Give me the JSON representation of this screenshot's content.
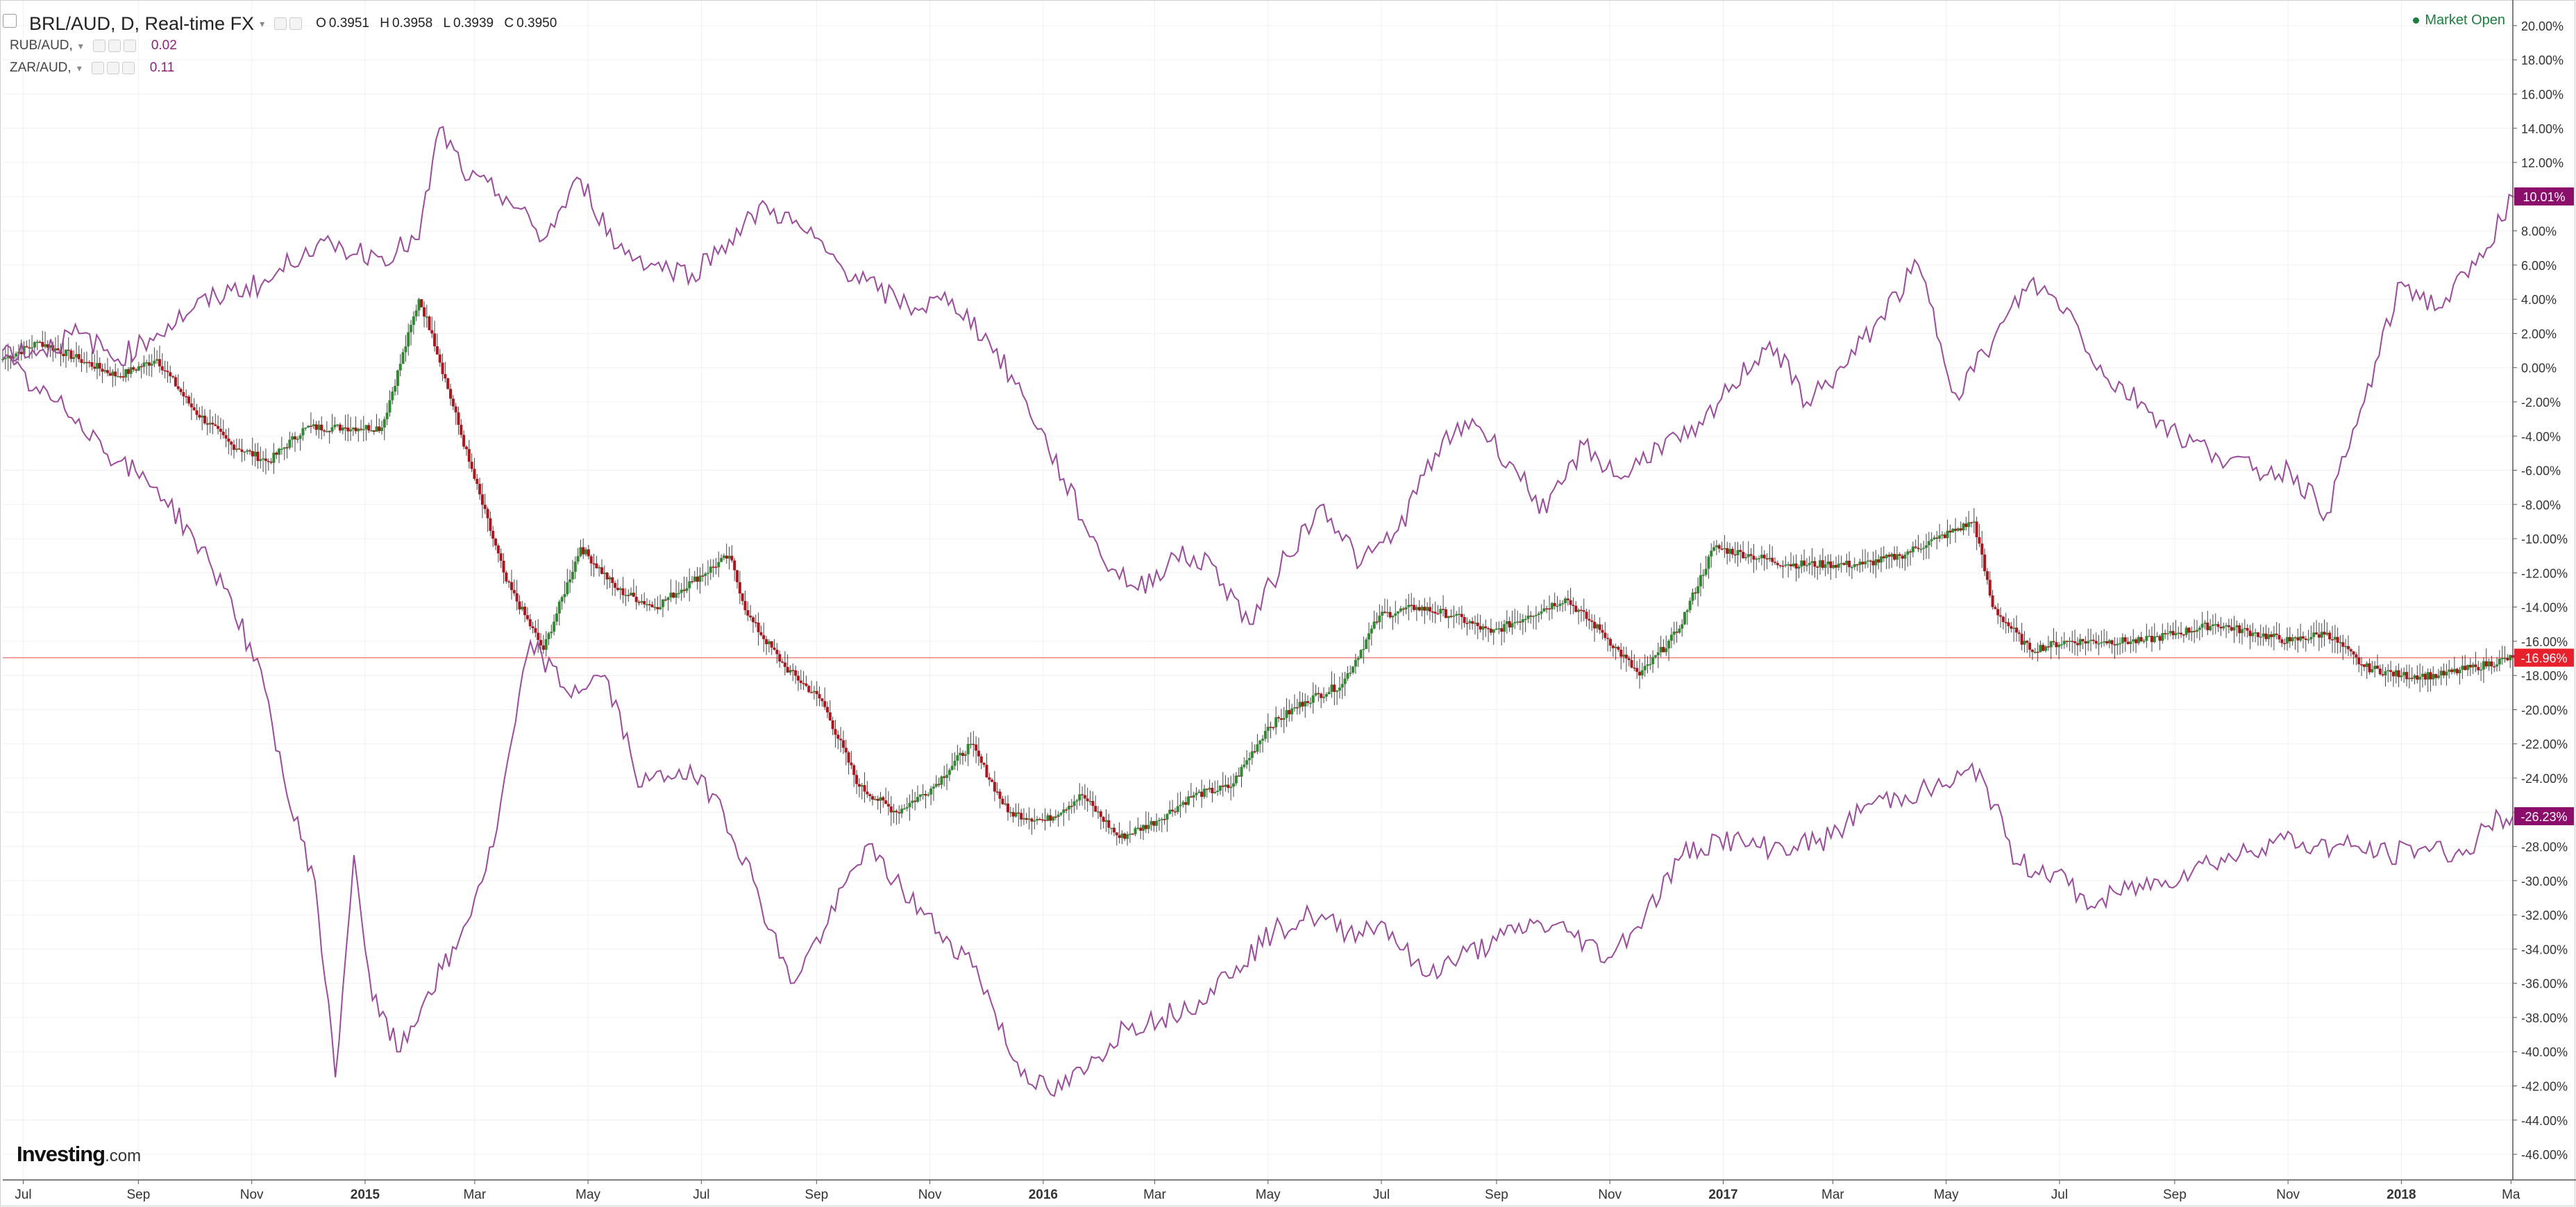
{
  "header": {
    "main_symbol": "BRL/AUD, D, Real-time FX",
    "ohlc": [
      {
        "k": "O",
        "v": "0.3951"
      },
      {
        "k": "H",
        "v": "0.3958"
      },
      {
        "k": "L",
        "v": "0.3939"
      },
      {
        "k": "C",
        "v": "0.3950"
      }
    ],
    "compare": [
      {
        "label": "RUB/AUD,",
        "value": "0.02"
      },
      {
        "label": "ZAR/AUD,",
        "value": "0.11"
      }
    ],
    "market_status": "Market Open"
  },
  "brand": {
    "name": "Investing",
    "suffix": ".com"
  },
  "colors": {
    "up": "#2e8b2e",
    "down": "#b3121b",
    "compare_line": "#9c4a9c",
    "last_price_line": "#f08080",
    "last_badge_main": "#e8202c",
    "last_badge_compare": "#8b0e6a",
    "grid": "#f0f0f0"
  },
  "chart_data": {
    "type": "line",
    "y_axis": {
      "unit": "%",
      "ylim": [
        -47.5,
        21.5
      ],
      "ticks": [
        20,
        18,
        16,
        14,
        12,
        10,
        8,
        6,
        4,
        2,
        0,
        -2,
        -4,
        -6,
        -8,
        -10,
        -12,
        -14,
        -16,
        -18,
        -20,
        -22,
        -24,
        -26,
        -28,
        -30,
        -32,
        -34,
        -36,
        -38,
        -40,
        -42,
        -44,
        -46
      ],
      "tick_labels": [
        "20.00%",
        "18.00%",
        "16.00%",
        "14.00%",
        "12.00%",
        "10.00%",
        "8.00%",
        "6.00%",
        "4.00%",
        "2.00%",
        "0.00%",
        "-2.00%",
        "-4.00%",
        "-6.00%",
        "-8.00%",
        "-10.00%",
        "-12.00%",
        "-14.00%",
        "-16.00%",
        "-18.00%",
        "-20.00%",
        "-22.00%",
        "-24.00%",
        "-26.00%",
        "-28.00%",
        "-30.00%",
        "-32.00%",
        "-34.00%",
        "-36.00%",
        "-38.00%",
        "-40.00%",
        "-42.00%",
        "-44.00%",
        "-46.00%"
      ]
    },
    "x_axis": {
      "xlim": [
        "2014-06-20",
        "2018-03-02"
      ],
      "ticks": [
        {
          "date": "2014-07-01",
          "label": "Jul",
          "bold": false
        },
        {
          "date": "2014-09-01",
          "label": "Sep",
          "bold": false
        },
        {
          "date": "2014-11-01",
          "label": "Nov",
          "bold": false
        },
        {
          "date": "2015-01-01",
          "label": "2015",
          "bold": true
        },
        {
          "date": "2015-03-01",
          "label": "Mar",
          "bold": false
        },
        {
          "date": "2015-05-01",
          "label": "May",
          "bold": false
        },
        {
          "date": "2015-07-01",
          "label": "Jul",
          "bold": false
        },
        {
          "date": "2015-09-01",
          "label": "Sep",
          "bold": false
        },
        {
          "date": "2015-11-01",
          "label": "Nov",
          "bold": false
        },
        {
          "date": "2016-01-01",
          "label": "2016",
          "bold": true
        },
        {
          "date": "2016-03-01",
          "label": "Mar",
          "bold": false
        },
        {
          "date": "2016-05-01",
          "label": "May",
          "bold": false
        },
        {
          "date": "2016-07-01",
          "label": "Jul",
          "bold": false
        },
        {
          "date": "2016-09-01",
          "label": "Sep",
          "bold": false
        },
        {
          "date": "2016-11-01",
          "label": "Nov",
          "bold": false
        },
        {
          "date": "2017-01-01",
          "label": "2017",
          "bold": true
        },
        {
          "date": "2017-03-01",
          "label": "Mar",
          "bold": false
        },
        {
          "date": "2017-05-01",
          "label": "May",
          "bold": false
        },
        {
          "date": "2017-07-01",
          "label": "Jul",
          "bold": false
        },
        {
          "date": "2017-09-01",
          "label": "Sep",
          "bold": false
        },
        {
          "date": "2017-11-01",
          "label": "Nov",
          "bold": false
        },
        {
          "date": "2018-01-01",
          "label": "2018",
          "bold": true
        },
        {
          "date": "2018-03-01",
          "label": "Ma",
          "bold": false
        }
      ]
    },
    "grid": true,
    "last_value_badges": [
      {
        "series": "BRL/AUD",
        "label": "-16.96%",
        "value": -16.96
      },
      {
        "series": "RUB/AUD",
        "label": "-26.23%",
        "value": -26.23
      },
      {
        "series": "ZAR/AUD",
        "label": "10.01%",
        "value": 10.01
      }
    ],
    "series": [
      {
        "name": "BRL/AUD",
        "style": "candlestick",
        "x": [
          "2014-06-20",
          "2014-07-10",
          "2014-07-31",
          "2014-08-21",
          "2014-09-11",
          "2014-10-01",
          "2014-10-21",
          "2014-11-10",
          "2014-11-30",
          "2014-12-20",
          "2015-01-10",
          "2015-01-30",
          "2015-02-06",
          "2015-02-26",
          "2015-03-18",
          "2015-04-07",
          "2015-04-27",
          "2015-05-17",
          "2015-06-06",
          "2015-06-26",
          "2015-07-16",
          "2015-07-26",
          "2015-08-15",
          "2015-09-04",
          "2015-09-24",
          "2015-10-14",
          "2015-11-03",
          "2015-11-23",
          "2015-12-13",
          "2016-01-02",
          "2016-01-22",
          "2016-02-11",
          "2016-03-02",
          "2016-03-22",
          "2016-04-11",
          "2016-05-01",
          "2016-05-21",
          "2016-06-10",
          "2016-06-30",
          "2016-07-20",
          "2016-08-09",
          "2016-08-29",
          "2016-09-18",
          "2016-10-08",
          "2016-10-28",
          "2016-11-17",
          "2016-12-07",
          "2016-12-27",
          "2017-01-16",
          "2017-02-05",
          "2017-02-25",
          "2017-03-17",
          "2017-04-06",
          "2017-04-26",
          "2017-05-16",
          "2017-05-26",
          "2017-06-15",
          "2017-07-05",
          "2017-07-25",
          "2017-08-14",
          "2017-09-03",
          "2017-09-23",
          "2017-10-13",
          "2017-11-02",
          "2017-11-22",
          "2017-12-12",
          "2018-01-01",
          "2018-01-21",
          "2018-02-10",
          "2018-03-02"
        ],
        "values": [
          0.5,
          1.5,
          0.5,
          -0.5,
          0.5,
          -2.5,
          -4.5,
          -5.5,
          -3.5,
          -3.5,
          -3.5,
          4.0,
          2.0,
          -5.5,
          -12.5,
          -16.5,
          -10.5,
          -13.0,
          -14.0,
          -12.5,
          -11.0,
          -14.5,
          -17.5,
          -19.5,
          -24.5,
          -26.0,
          -24.5,
          -22.0,
          -26.0,
          -26.5,
          -25.0,
          -27.5,
          -26.5,
          -25.0,
          -24.5,
          -21.0,
          -19.5,
          -18.5,
          -14.5,
          -14.0,
          -14.5,
          -15.5,
          -14.5,
          -13.5,
          -15.5,
          -18.0,
          -15.5,
          -10.5,
          -11.0,
          -11.5,
          -11.5,
          -11.5,
          -11.0,
          -10.0,
          -9.0,
          -14.0,
          -16.5,
          -16.0,
          -16.0,
          -16.0,
          -15.5,
          -15.0,
          -15.5,
          -16.0,
          -15.5,
          -17.5,
          -18.0,
          -18.0,
          -17.5,
          -16.96
        ]
      },
      {
        "name": "ZAR/AUD",
        "style": "line",
        "x": [
          "2014-06-20",
          "2014-07-10",
          "2014-07-31",
          "2014-08-21",
          "2014-09-11",
          "2014-10-01",
          "2014-10-21",
          "2014-11-10",
          "2014-11-30",
          "2014-12-20",
          "2015-01-10",
          "2015-01-30",
          "2015-02-10",
          "2015-02-26",
          "2015-03-18",
          "2015-04-07",
          "2015-04-27",
          "2015-05-17",
          "2015-06-06",
          "2015-06-26",
          "2015-07-16",
          "2015-08-05",
          "2015-08-25",
          "2015-09-14",
          "2015-10-04",
          "2015-10-24",
          "2015-11-13",
          "2015-12-03",
          "2015-12-23",
          "2016-01-12",
          "2016-02-01",
          "2016-02-21",
          "2016-03-12",
          "2016-04-01",
          "2016-04-21",
          "2016-05-11",
          "2016-05-31",
          "2016-06-20",
          "2016-07-10",
          "2016-07-30",
          "2016-08-19",
          "2016-09-08",
          "2016-09-28",
          "2016-10-18",
          "2016-11-07",
          "2016-11-27",
          "2016-12-17",
          "2017-01-06",
          "2017-01-26",
          "2017-02-15",
          "2017-03-07",
          "2017-03-27",
          "2017-04-16",
          "2017-05-06",
          "2017-05-26",
          "2017-06-15",
          "2017-07-05",
          "2017-07-25",
          "2017-08-14",
          "2017-09-03",
          "2017-09-23",
          "2017-10-13",
          "2017-11-02",
          "2017-11-22",
          "2017-12-12",
          "2018-01-01",
          "2018-01-21",
          "2018-02-10",
          "2018-03-02"
        ],
        "values": [
          1.0,
          1.0,
          2.0,
          0.5,
          2.0,
          3.5,
          4.5,
          5.0,
          7.0,
          7.0,
          6.5,
          7.5,
          14.0,
          11.0,
          10.0,
          7.5,
          11.0,
          7.0,
          6.0,
          5.5,
          7.5,
          9.5,
          8.0,
          6.0,
          4.5,
          3.5,
          4.0,
          1.5,
          -2.0,
          -6.5,
          -11.0,
          -13.0,
          -11.0,
          -11.5,
          -15.0,
          -11.0,
          -8.0,
          -11.5,
          -9.5,
          -5.0,
          -3.0,
          -5.5,
          -8.5,
          -4.5,
          -6.5,
          -4.5,
          -4.0,
          -1.0,
          1.5,
          -2.0,
          0.0,
          3.0,
          6.0,
          -1.5,
          1.5,
          5.0,
          3.5,
          -0.5,
          -2.0,
          -4.0,
          -5.0,
          -6.0,
          -6.0,
          -8.5,
          -2.0,
          5.0,
          3.5,
          6.0,
          10.01
        ]
      },
      {
        "name": "RUB/AUD",
        "style": "line",
        "x": [
          "2014-06-20",
          "2014-07-10",
          "2014-07-31",
          "2014-08-21",
          "2014-09-11",
          "2014-10-01",
          "2014-10-21",
          "2014-11-10",
          "2014-11-20",
          "2014-12-05",
          "2014-12-16",
          "2014-12-26",
          "2015-01-05",
          "2015-01-20",
          "2015-02-04",
          "2015-02-19",
          "2015-03-11",
          "2015-03-31",
          "2015-04-20",
          "2015-05-10",
          "2015-05-30",
          "2015-06-19",
          "2015-07-09",
          "2015-07-29",
          "2015-08-18",
          "2015-09-07",
          "2015-09-27",
          "2015-10-17",
          "2015-11-06",
          "2015-11-26",
          "2015-12-16",
          "2016-01-05",
          "2016-01-25",
          "2016-02-14",
          "2016-03-05",
          "2016-03-25",
          "2016-04-14",
          "2016-05-04",
          "2016-05-24",
          "2016-06-13",
          "2016-07-03",
          "2016-07-23",
          "2016-08-12",
          "2016-09-01",
          "2016-09-21",
          "2016-10-11",
          "2016-10-31",
          "2016-11-20",
          "2016-12-10",
          "2016-12-30",
          "2017-01-19",
          "2017-02-08",
          "2017-02-28",
          "2017-03-20",
          "2017-04-09",
          "2017-04-29",
          "2017-05-19",
          "2017-06-08",
          "2017-06-28",
          "2017-07-18",
          "2017-08-07",
          "2017-08-27",
          "2017-09-16",
          "2017-10-06",
          "2017-10-26",
          "2017-11-15",
          "2017-12-05",
          "2017-12-25",
          "2018-01-14",
          "2018-02-03",
          "2018-02-23",
          "2018-03-02"
        ],
        "values": [
          0.5,
          -1.5,
          -3.0,
          -5.5,
          -7.0,
          -10.0,
          -13.5,
          -19.5,
          -25.0,
          -30.0,
          -41.5,
          -28.5,
          -37.0,
          -40.0,
          -36.5,
          -34.0,
          -28.0,
          -16.0,
          -19.0,
          -18.0,
          -24.5,
          -23.5,
          -25.0,
          -30.0,
          -36.0,
          -32.5,
          -28.0,
          -30.5,
          -33.0,
          -35.0,
          -40.5,
          -42.5,
          -41.0,
          -38.5,
          -38.0,
          -37.0,
          -35.0,
          -33.0,
          -32.0,
          -33.0,
          -32.5,
          -35.5,
          -34.5,
          -33.5,
          -32.5,
          -33.0,
          -34.5,
          -32.0,
          -28.5,
          -27.5,
          -28.0,
          -28.0,
          -27.5,
          -25.5,
          -25.0,
          -24.5,
          -23.5,
          -29.0,
          -29.5,
          -31.5,
          -30.5,
          -30.0,
          -29.0,
          -28.5,
          -27.5,
          -28.0,
          -28.0,
          -28.5,
          -28.0,
          -28.5,
          -26.23,
          -26.23
        ]
      }
    ]
  }
}
